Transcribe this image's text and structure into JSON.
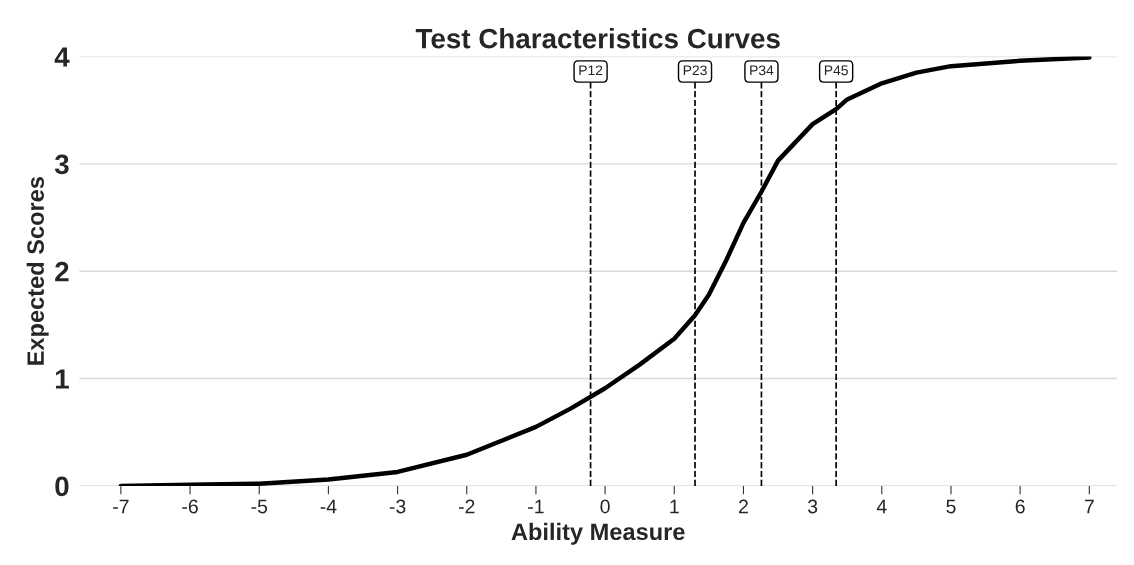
{
  "chart_data": {
    "type": "line",
    "title": "Test Characteristics Curves",
    "xlabel": "Ability Measure",
    "ylabel": "Expected Scores",
    "x": [
      -7,
      -6,
      -5,
      -4,
      -3,
      -2,
      -1,
      -0.5,
      0,
      0.5,
      1,
      1.3,
      1.5,
      1.75,
      2,
      2.26,
      2.5,
      3,
      3.34,
      3.5,
      4,
      4.5,
      5,
      6,
      7
    ],
    "series": [
      {
        "color": "#000000",
        "values": [
          0.0,
          0.01,
          0.02,
          0.06,
          0.13,
          0.29,
          0.55,
          0.72,
          0.91,
          1.13,
          1.37,
          1.59,
          1.78,
          2.1,
          2.45,
          2.74,
          3.03,
          3.37,
          3.51,
          3.6,
          3.75,
          3.85,
          3.91,
          3.96,
          3.99
        ]
      }
    ],
    "xlim": [
      -7.6,
      7.4
    ],
    "ylim": [
      0,
      4
    ],
    "xticks": [
      -7,
      -6,
      -5,
      -4,
      -3,
      -2,
      -1,
      0,
      1,
      2,
      3,
      4,
      5,
      6,
      7
    ],
    "yticks": [
      0,
      1,
      2,
      3,
      4
    ],
    "ref_lines": [
      {
        "axis": "x",
        "value": -0.21,
        "label": "P12",
        "color": "#000000",
        "line_style": "dashed"
      },
      {
        "axis": "x",
        "value": 1.3,
        "label": "P23",
        "color": "#000000",
        "line_style": "dashed"
      },
      {
        "axis": "x",
        "value": 2.26,
        "label": "P34",
        "color": "#000000",
        "line_style": "dashed"
      },
      {
        "axis": "x",
        "value": 3.34,
        "label": "P45",
        "color": "#000000",
        "line_style": "dashed"
      }
    ],
    "grid": "y",
    "legend": false,
    "marker": "none",
    "line_style": "solid"
  }
}
